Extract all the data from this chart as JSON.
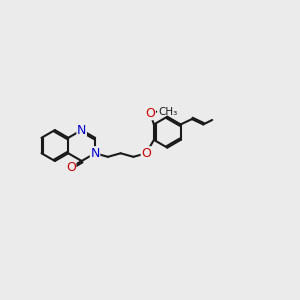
{
  "background_color": "#ebebeb",
  "bond_color": "#1a1a1a",
  "nitrogen_color": "#0000cc",
  "oxygen_color": "#cc0000",
  "font_size_atom": 9,
  "fig_size": [
    3.0,
    3.0
  ],
  "dpi": 100,
  "xlim": [
    -4.5,
    5.5
  ],
  "ylim": [
    -2.5,
    2.5
  ]
}
